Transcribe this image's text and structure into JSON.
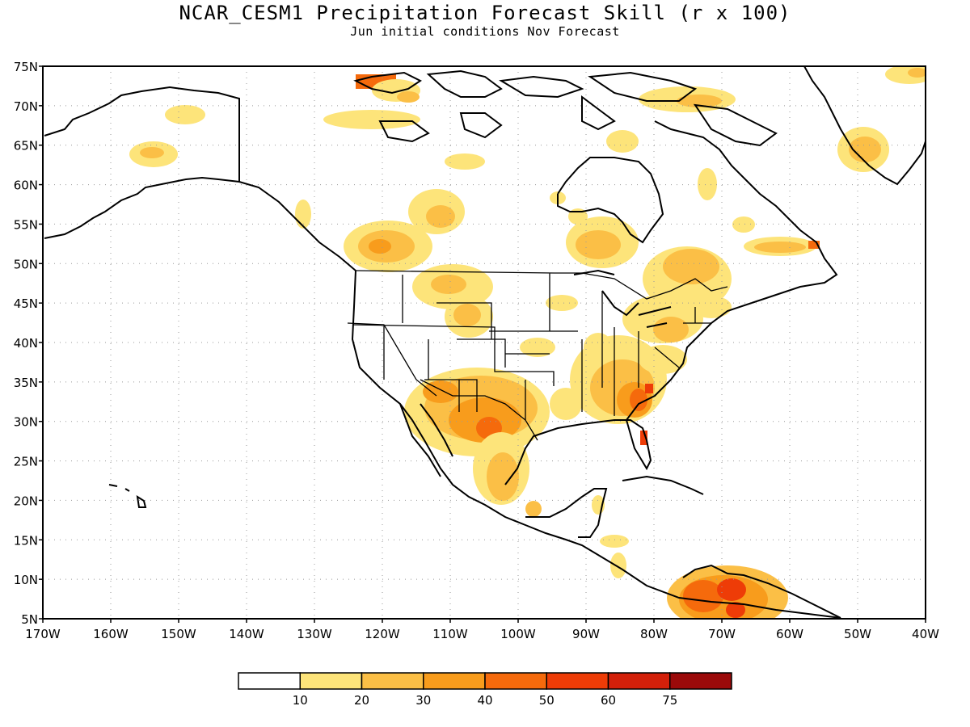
{
  "title": "NCAR_CESM1 Precipitation Forecast Skill (r x 100)",
  "subtitle": "Jun initial conditions  Nov Forecast",
  "map": {
    "lon_range": [
      -170,
      -40
    ],
    "lat_range": [
      5,
      75
    ],
    "lat_labels": [
      "75N",
      "70N",
      "65N",
      "60N",
      "55N",
      "50N",
      "45N",
      "40N",
      "35N",
      "30N",
      "25N",
      "20N",
      "15N",
      "10N",
      "5N"
    ],
    "lon_labels": [
      "170W",
      "160W",
      "150W",
      "140W",
      "130W",
      "120W",
      "110W",
      "100W",
      "90W",
      "80W",
      "70W",
      "60W",
      "50W",
      "40W"
    ],
    "gridlines": "dotted"
  },
  "legend": {
    "colors": [
      "#ffffff",
      "#fde47a",
      "#fbbf46",
      "#f89c1c",
      "#f56a0c",
      "#ee3c07",
      "#d3200a",
      "#9b0a0a"
    ],
    "labels": [
      "10",
      "20",
      "30",
      "40",
      "50",
      "60",
      "75"
    ]
  }
}
